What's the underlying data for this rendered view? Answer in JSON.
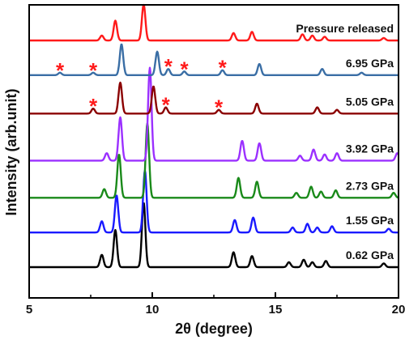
{
  "chart_data": {
    "type": "line",
    "title": "",
    "xlabel": "2θ (degree)",
    "ylabel": "Intensity (arb.unit)",
    "xlim": [
      5,
      20
    ],
    "xticks": [
      5,
      10,
      15,
      20
    ],
    "y_ticks_shown": false,
    "grid": false,
    "legend": "none",
    "annotations": [
      {
        "text": "*",
        "series": "6.95 GPa",
        "x": 6.25
      },
      {
        "text": "*",
        "series": "6.95 GPa",
        "x": 7.6
      },
      {
        "text": "*",
        "series": "6.95 GPa",
        "x": 10.65
      },
      {
        "text": "*",
        "series": "6.95 GPa",
        "x": 11.3
      },
      {
        "text": "*",
        "series": "6.95 GPa",
        "x": 12.85
      },
      {
        "text": "*",
        "series": "5.05 GPa",
        "x": 7.6
      },
      {
        "text": "*",
        "series": "5.05 GPa",
        "x": 10.55
      },
      {
        "text": "*",
        "series": "5.05 GPa",
        "x": 12.7
      }
    ],
    "series": [
      {
        "name": "0.62 GPa",
        "color": "#000000",
        "baseline": 0,
        "peaks": [
          [
            7.95,
            0.1
          ],
          [
            8.5,
            0.3
          ],
          [
            9.65,
            0.52
          ],
          [
            13.3,
            0.12
          ],
          [
            14.05,
            0.09
          ],
          [
            15.55,
            0.04
          ],
          [
            16.15,
            0.06
          ],
          [
            16.5,
            0.04
          ],
          [
            17.05,
            0.05
          ],
          [
            19.4,
            0.03
          ]
        ]
      },
      {
        "name": "1.55 GPa",
        "color": "#1a1aff",
        "baseline": 0.28,
        "peaks": [
          [
            7.95,
            0.09
          ],
          [
            8.55,
            0.3
          ],
          [
            9.7,
            0.5
          ],
          [
            13.35,
            0.1
          ],
          [
            14.1,
            0.12
          ],
          [
            15.7,
            0.04
          ],
          [
            16.3,
            0.07
          ],
          [
            16.7,
            0.04
          ],
          [
            17.3,
            0.05
          ],
          [
            19.6,
            0.03
          ]
        ]
      },
      {
        "name": "2.73 GPa",
        "color": "#1a8a1a",
        "baseline": 0.56,
        "peaks": [
          [
            8.05,
            0.07
          ],
          [
            8.65,
            0.35
          ],
          [
            9.8,
            0.6
          ],
          [
            13.5,
            0.16
          ],
          [
            14.25,
            0.13
          ],
          [
            15.85,
            0.04
          ],
          [
            16.45,
            0.09
          ],
          [
            16.85,
            0.05
          ],
          [
            17.45,
            0.06
          ],
          [
            19.8,
            0.04
          ]
        ]
      },
      {
        "name": "3.92 GPa",
        "color": "#9b30ff",
        "baseline": 0.86,
        "peaks": [
          [
            8.15,
            0.06
          ],
          [
            8.7,
            0.35
          ],
          [
            9.9,
            0.75
          ],
          [
            13.65,
            0.16
          ],
          [
            14.35,
            0.14
          ],
          [
            16.0,
            0.04
          ],
          [
            16.55,
            0.09
          ],
          [
            17.0,
            0.05
          ],
          [
            17.5,
            0.06
          ],
          [
            19.95,
            0.06
          ]
        ]
      },
      {
        "name": "5.05 GPa",
        "color": "#8b0000",
        "baseline": 1.24,
        "peaks": [
          [
            7.6,
            0.04
          ],
          [
            8.7,
            0.25
          ],
          [
            10.05,
            0.22
          ],
          [
            10.55,
            0.05
          ],
          [
            12.7,
            0.03
          ],
          [
            14.25,
            0.08
          ],
          [
            16.7,
            0.05
          ],
          [
            17.5,
            0.03
          ]
        ]
      },
      {
        "name": "6.95 GPa",
        "color": "#3a6ea5",
        "baseline": 1.55,
        "peaks": [
          [
            6.25,
            0.02
          ],
          [
            7.6,
            0.02
          ],
          [
            8.75,
            0.25
          ],
          [
            10.2,
            0.19
          ],
          [
            10.65,
            0.05
          ],
          [
            11.3,
            0.03
          ],
          [
            12.85,
            0.04
          ],
          [
            14.35,
            0.09
          ],
          [
            16.9,
            0.05
          ],
          [
            18.5,
            0.02
          ]
        ]
      },
      {
        "name": "Pressure released",
        "color": "#ff1a1a",
        "baseline": 1.83,
        "peaks": [
          [
            7.95,
            0.04
          ],
          [
            8.5,
            0.16
          ],
          [
            9.65,
            0.29
          ],
          [
            13.3,
            0.06
          ],
          [
            14.05,
            0.07
          ],
          [
            16.1,
            0.05
          ],
          [
            16.5,
            0.04
          ],
          [
            17.0,
            0.03
          ],
          [
            19.4,
            0.02
          ]
        ]
      }
    ]
  }
}
